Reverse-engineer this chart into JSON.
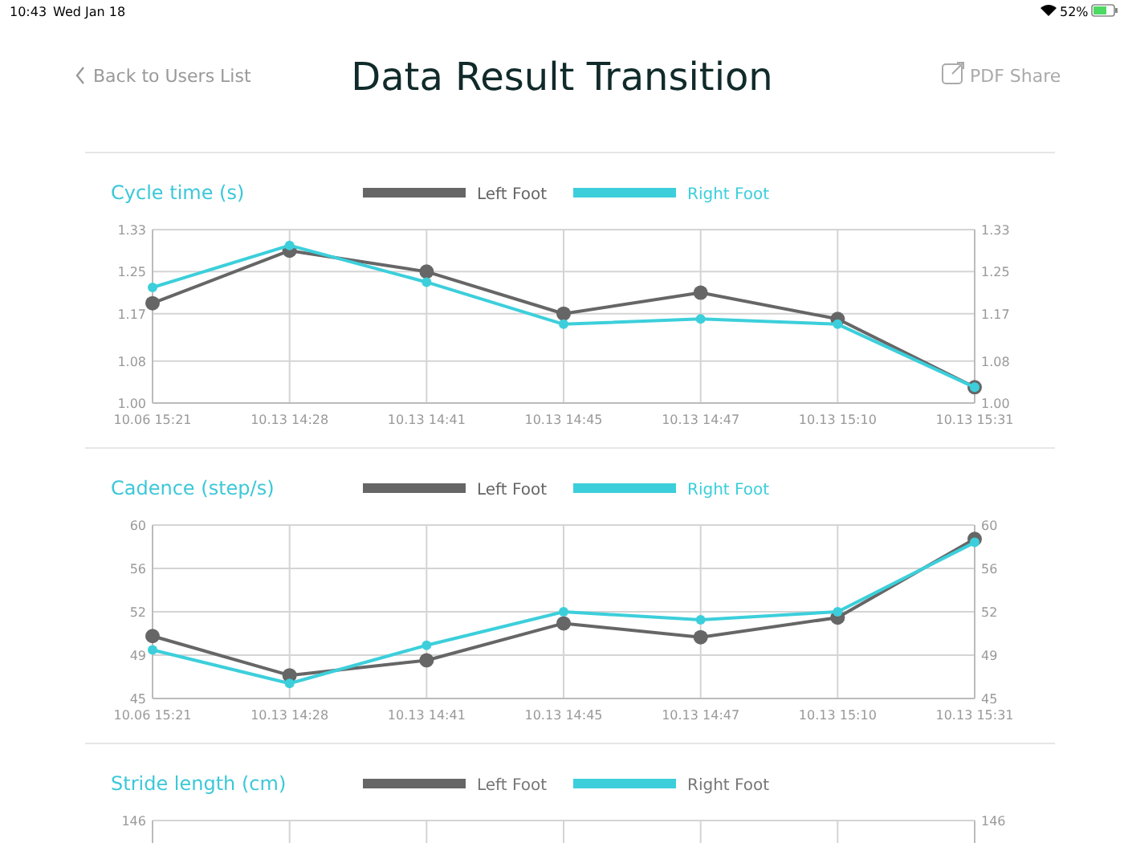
{
  "chart_data": [
    {
      "type": "other",
      "title": "Data Result Transition",
      "annotations": [
        "10:43",
        "Wed Jan 18",
        "52%",
        "Back to Users List",
        "PDF Share"
      ]
    },
    {
      "type": "line",
      "title": "Cycle time (s)",
      "categories": [
        "10.06 15:21",
        "10.13 14:28",
        "10.13 14:41",
        "10.13 14:45",
        "10.13 14:47",
        "10.13 15:10",
        "10.13 15:31"
      ],
      "series": [
        {
          "name": "Left Foot",
          "color": "#666666",
          "values": [
            1.19,
            1.29,
            1.25,
            1.17,
            1.21,
            1.16,
            1.03
          ]
        },
        {
          "name": "Right Foot",
          "color": "#3ccfdb",
          "values": [
            1.22,
            1.3,
            1.23,
            1.15,
            1.16,
            1.15,
            1.03
          ]
        }
      ],
      "ylim": [
        1.0,
        1.33
      ],
      "yticks": [
        {
          "value": 1.0,
          "label": "1.00"
        },
        {
          "value": 1.08,
          "label": "1.08"
        },
        {
          "value": 1.17,
          "label": "1.17"
        },
        {
          "value": 1.25,
          "label": "1.25"
        },
        {
          "value": 1.33,
          "label": "1.33"
        }
      ],
      "y2lim": [
        1.0,
        1.33
      ],
      "y2ticks": [
        {
          "value": 1.0,
          "label": "1.00"
        },
        {
          "value": 1.08,
          "label": "1.08"
        },
        {
          "value": 1.17,
          "label": "1.17"
        },
        {
          "value": 1.25,
          "label": "1.25"
        },
        {
          "value": 1.33,
          "label": "1.33"
        }
      ],
      "grid": true,
      "legend": "top",
      "marker": "circle",
      "line_style": "solid"
    },
    {
      "type": "line",
      "title": "Cadence (step/s)",
      "categories": [
        "10.06 15:21",
        "10.13 14:28",
        "10.13 14:41",
        "10.13 14:45",
        "10.13 14:47",
        "10.13 15:10",
        "10.13 15:31"
      ],
      "series": [
        {
          "name": "Left Foot",
          "color": "#666666",
          "values": [
            50.4,
            47.0,
            48.3,
            51.5,
            50.3,
            52.0,
            58.8
          ]
        },
        {
          "name": "Right Foot",
          "color": "#3ccfdb",
          "values": [
            49.2,
            46.3,
            49.6,
            52.5,
            51.8,
            52.5,
            58.5
          ]
        }
      ],
      "ylim": [
        45,
        60
      ],
      "yticks": [
        45,
        {
          "value": 48.75,
          "label": "49"
        },
        {
          "value": 52.5,
          "label": "52"
        },
        {
          "value": 56.25,
          "label": "56"
        },
        60
      ],
      "y2lim": [
        45,
        60
      ],
      "y2ticks": [
        45,
        {
          "value": 48.75,
          "label": "49"
        },
        {
          "value": 52.5,
          "label": "52"
        },
        {
          "value": 56.25,
          "label": "56"
        },
        60
      ],
      "grid": true,
      "legend": "top",
      "marker": "circle",
      "line_style": "solid"
    },
    {
      "type": "other",
      "title": "Stride length (cm)",
      "annotations": [
        "Left Foot",
        "Right Foot",
        "146",
        "146"
      ]
    }
  ]
}
